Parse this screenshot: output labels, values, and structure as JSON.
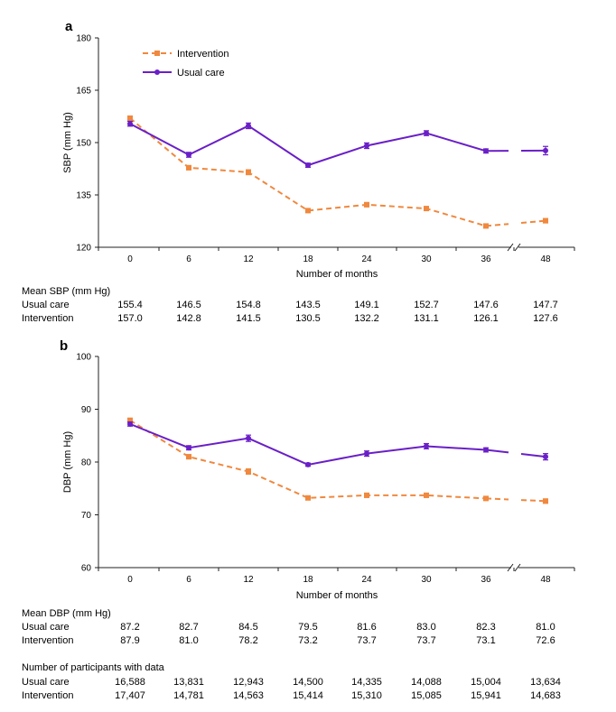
{
  "chart_data": [
    {
      "type": "line",
      "panel_label": "a",
      "xlabel": "Number of months",
      "ylabel": "SBP (mm Hg)",
      "x": [
        0,
        6,
        12,
        18,
        24,
        30,
        36,
        48
      ],
      "x_tick_labels": [
        "0",
        "6",
        "12",
        "18",
        "24",
        "30",
        "36",
        "48"
      ],
      "ylim": [
        120,
        180
      ],
      "y_ticks": [
        120,
        135,
        150,
        165,
        180
      ],
      "y_tick_labels": [
        "120",
        "135",
        "150",
        "165",
        "180"
      ],
      "legend": [
        "Intervention",
        "Usual care"
      ],
      "legend_position": "top-left",
      "series": [
        {
          "name": "Intervention",
          "color": "#f0883e",
          "dashed": true,
          "values": [
            157.0,
            142.8,
            141.5,
            130.5,
            132.2,
            131.1,
            126.1,
            127.6
          ],
          "errors": [
            0.6,
            0.6,
            0.7,
            0.5,
            0.6,
            0.5,
            0.4,
            0.6
          ]
        },
        {
          "name": "Usual care",
          "color": "#6a1fc7",
          "dashed": false,
          "values": [
            155.4,
            146.5,
            154.8,
            143.5,
            149.1,
            152.7,
            147.6,
            147.7
          ],
          "errors": [
            0.7,
            0.7,
            0.8,
            0.6,
            0.8,
            0.7,
            0.6,
            1.2
          ]
        }
      ]
    },
    {
      "type": "line",
      "panel_label": "b",
      "xlabel": "Number of months",
      "ylabel": "DBP (mm Hg)",
      "x": [
        0,
        6,
        12,
        18,
        24,
        30,
        36,
        48
      ],
      "x_tick_labels": [
        "0",
        "6",
        "12",
        "18",
        "24",
        "30",
        "36",
        "48"
      ],
      "ylim": [
        60,
        100
      ],
      "y_ticks": [
        60,
        70,
        80,
        90,
        100
      ],
      "y_tick_labels": [
        "60",
        "70",
        "80",
        "90",
        "100"
      ],
      "series": [
        {
          "name": "Intervention",
          "color": "#f0883e",
          "dashed": true,
          "values": [
            87.9,
            81.0,
            78.2,
            73.2,
            73.7,
            73.7,
            73.1,
            72.6
          ],
          "errors": [
            0.4,
            0.4,
            0.5,
            0.3,
            0.4,
            0.4,
            0.3,
            0.4
          ]
        },
        {
          "name": "Usual care",
          "color": "#6a1fc7",
          "dashed": false,
          "values": [
            87.2,
            82.7,
            84.5,
            79.5,
            81.6,
            83.0,
            82.3,
            81.0
          ],
          "errors": [
            0.4,
            0.4,
            0.6,
            0.3,
            0.5,
            0.5,
            0.4,
            0.6
          ]
        }
      ]
    }
  ],
  "tables": {
    "col_labels": [
      "0",
      "6",
      "12",
      "18",
      "24",
      "30",
      "36",
      "48"
    ],
    "sbp": {
      "title": "Mean SBP (mm Hg)",
      "rows": [
        {
          "label": "Usual care",
          "values": [
            "155.4",
            "146.5",
            "154.8",
            "143.5",
            "149.1",
            "152.7",
            "147.6",
            "147.7"
          ]
        },
        {
          "label": "Intervention",
          "values": [
            "157.0",
            "142.8",
            "141.5",
            "130.5",
            "132.2",
            "131.1",
            "126.1",
            "127.6"
          ]
        }
      ]
    },
    "dbp": {
      "title": "Mean DBP (mm Hg)",
      "rows": [
        {
          "label": "Usual care",
          "values": [
            "87.2",
            "82.7",
            "84.5",
            "79.5",
            "81.6",
            "83.0",
            "82.3",
            "81.0"
          ]
        },
        {
          "label": "Intervention",
          "values": [
            "87.9",
            "81.0",
            "78.2",
            "73.2",
            "73.7",
            "73.7",
            "73.1",
            "72.6"
          ]
        }
      ]
    },
    "participants": {
      "title": "Number of participants with data",
      "rows": [
        {
          "label": "Usual care",
          "values": [
            "16,588",
            "13,831",
            "12,943",
            "14,500",
            "14,335",
            "14,088",
            "15,004",
            "13,634"
          ]
        },
        {
          "label": "Intervention",
          "values": [
            "17,407",
            "14,781",
            "14,563",
            "15,414",
            "15,310",
            "15,085",
            "15,941",
            "14,683"
          ]
        }
      ]
    }
  }
}
